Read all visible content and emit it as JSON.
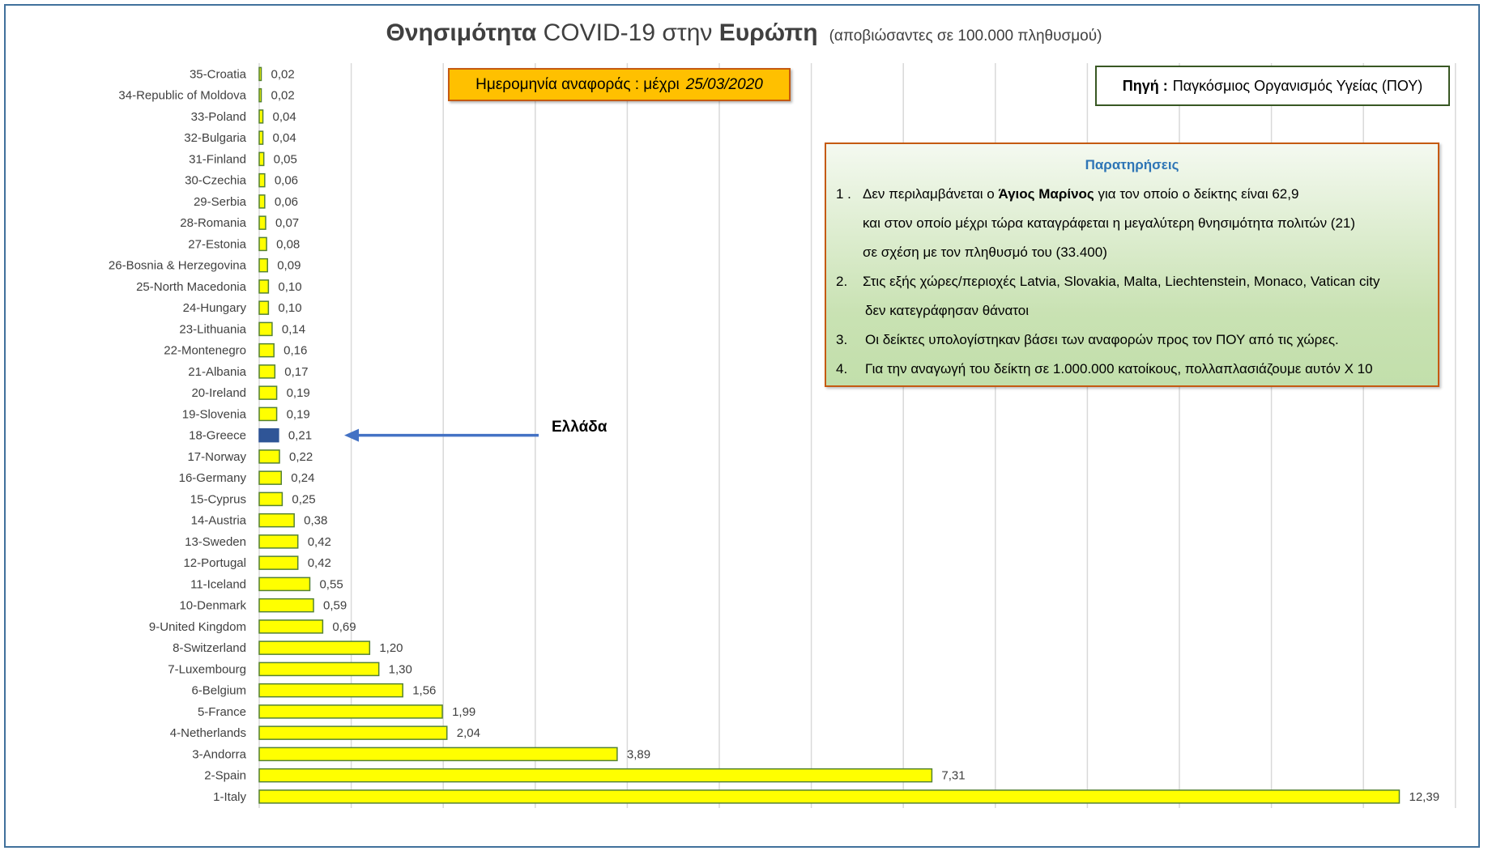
{
  "title": {
    "bold1": "Θνησιμότητα",
    "mid": "COVID-19 στην",
    "bold2": "Ευρώπη",
    "sub": "(αποβιώσαντες σε 100.000 πληθυσμού)"
  },
  "date_box": {
    "label": "Ημερομηνία αναφοράς :  μέχρι",
    "date": "25/03/2020"
  },
  "source_box": {
    "label": "Πηγή :",
    "value": "Παγκόσμιος Οργανισμός Υγείας (ΠΟΥ)"
  },
  "notes": {
    "title": "Παρατηρήσεις",
    "n1_num": "1 .",
    "n1_a": "Δεν περιλαμβάνεται ο ",
    "n1_bold": "Άγιος Μαρίνος",
    "n1_b": " για τον οποίο ο δείκτης είναι 62,9",
    "n1_l2": "και στον οποίο μέχρι τώρα καταγράφεται η μεγαλύτερη θνησιμότητα πολιτών (21)",
    "n1_l3": "σε σχέση με τον πληθυσμό του (33.400)",
    "n2_num": "2.",
    "n2_l1": "Στις εξής χώρες/περιοχές Latvia, Slovakia, Malta, Liechtenstein, Monaco, Vatican city",
    "n2_l2": "δεν κατεγράφησαν θάνατοι",
    "n3_num": "3.",
    "n3_l1": "Οι δείκτες υπολογίστηκαν βάσει των αναφορών προς τον ΠΟΥ από τις χώρες.",
    "n4_num": "4.",
    "n4_l1": "Για την αναγωγή του δείκτη σε 1.000.000 κατοίκους, πολλαπλασιάζουμε αυτόν Χ 10"
  },
  "annotation": {
    "label": "Ελλάδα"
  },
  "colors": {
    "bar": "#ffff00",
    "bar_border": "#548235",
    "highlight": "#2f5597",
    "arrow": "#4472c4",
    "grid": "#d9d9d9"
  },
  "chart_data": {
    "type": "bar",
    "orientation": "horizontal",
    "title": "Θνησιμότητα COVID-19 στην Ευρώπη (αποβιώσαντες σε 100.000 πληθυσμού)",
    "xlim": [
      0,
      13
    ],
    "grid": true,
    "highlight": "18-Greece",
    "categories": [
      "35-Croatia",
      "34-Republic of Moldova",
      "33-Poland",
      "32-Bulgaria",
      "31-Finland",
      "30-Czechia",
      "29-Serbia",
      "28-Romania",
      "27-Estonia",
      "26-Bosnia & Herzegovina",
      "25-North Macedonia",
      "24-Hungary",
      "23-Lithuania",
      "22-Montenegro",
      "21-Albania",
      "20-Ireland",
      "19-Slovenia",
      "18-Greece",
      "17-Norway",
      "16-Germany",
      "15-Cyprus",
      "14-Austria",
      "13-Sweden",
      "12-Portugal",
      "11-Iceland",
      "10-Denmark",
      "9-United Kingdom",
      "8-Switzerland",
      "7-Luxembourg",
      "6-Belgium",
      "5-France",
      "4-Netherlands",
      "3-Andorra",
      "2-Spain",
      "1-Italy"
    ],
    "values": [
      0.02,
      0.02,
      0.04,
      0.04,
      0.05,
      0.06,
      0.06,
      0.07,
      0.08,
      0.09,
      0.1,
      0.1,
      0.14,
      0.16,
      0.17,
      0.19,
      0.19,
      0.21,
      0.22,
      0.24,
      0.25,
      0.38,
      0.42,
      0.42,
      0.55,
      0.59,
      0.69,
      1.2,
      1.3,
      1.56,
      1.99,
      2.04,
      3.89,
      7.31,
      12.39
    ],
    "value_labels": [
      "0,02",
      "0,02",
      "0,04",
      "0,04",
      "0,05",
      "0,06",
      "0,06",
      "0,07",
      "0,08",
      "0,09",
      "0,10",
      "0,10",
      "0,14",
      "0,16",
      "0,17",
      "0,19",
      "0,19",
      "0,21",
      "0,22",
      "0,24",
      "0,25",
      "0,38",
      "0,42",
      "0,42",
      "0,55",
      "0,59",
      "0,69",
      "1,20",
      "1,30",
      "1,56",
      "1,99",
      "2,04",
      "3,89",
      "7,31",
      "12,39"
    ]
  }
}
